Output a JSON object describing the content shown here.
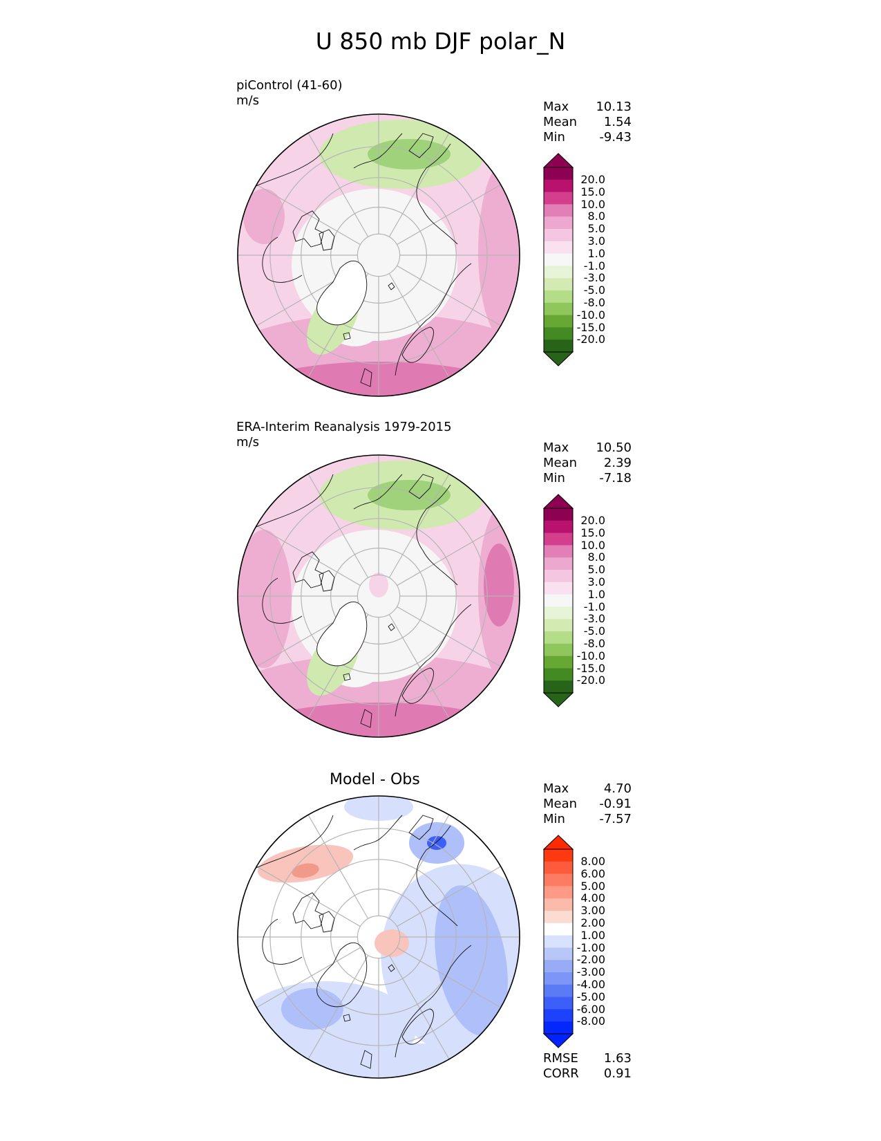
{
  "title": "U 850 mb DJF polar_N",
  "panels": [
    {
      "id": "model",
      "label_lines": [
        "piControl (41-60)",
        "m/s"
      ],
      "center_title": "",
      "stats": [
        {
          "name": "Max",
          "value": "10.13"
        },
        {
          "name": "Mean",
          "value": "1.54"
        },
        {
          "name": "Min",
          "value": "-9.43"
        }
      ],
      "colorbar": "diverging_pink_green",
      "footer_stats": []
    },
    {
      "id": "obs",
      "label_lines": [
        "ERA-Interim Reanalysis 1979-2015",
        "m/s"
      ],
      "center_title": "",
      "stats": [
        {
          "name": "Max",
          "value": "10.50"
        },
        {
          "name": "Mean",
          "value": "2.39"
        },
        {
          "name": "Min",
          "value": "-7.18"
        }
      ],
      "colorbar": "diverging_pink_green",
      "footer_stats": []
    },
    {
      "id": "diff",
      "label_lines": [],
      "center_title": "Model - Obs",
      "stats": [
        {
          "name": "Max",
          "value": "4.70"
        },
        {
          "name": "Mean",
          "value": "-0.91"
        },
        {
          "name": "Min",
          "value": "-7.57"
        }
      ],
      "colorbar": "diverging_red_blue",
      "footer_stats": [
        {
          "name": "RMSE",
          "value": "1.63"
        },
        {
          "name": "CORR",
          "value": "0.91"
        }
      ]
    }
  ],
  "colorbars": {
    "diverging_pink_green": {
      "labels": [
        "20.0",
        "15.0",
        "10.0",
        "8.0",
        "5.0",
        "3.0",
        "1.0",
        "-1.0",
        "-3.0",
        "-5.0",
        "-8.0",
        "-10.0",
        "-15.0",
        "-20.0"
      ],
      "colors": [
        "#8e0152",
        "#b8126e",
        "#d33f8d",
        "#e27fb6",
        "#eda8d0",
        "#f4c6e2",
        "#fae1ef",
        "#f7f7f7",
        "#e8f4d8",
        "#d3ebb3",
        "#b4dd88",
        "#8fc75d",
        "#67a733",
        "#448a22",
        "#276419"
      ],
      "over_color": "#8e0152",
      "under_color": "#276419"
    },
    "diverging_red_blue": {
      "labels": [
        "8.00",
        "6.00",
        "5.00",
        "4.00",
        "3.00",
        "2.00",
        "1.00",
        "-1.00",
        "-2.00",
        "-3.00",
        "-4.00",
        "-5.00",
        "-6.00",
        "-8.00"
      ],
      "colors": [
        "#ff3a10",
        "#fd5b3b",
        "#fd7b62",
        "#fc9a85",
        "#fbbaaa",
        "#fcdbd1",
        "#ffffff",
        "#d9e2fc",
        "#b8c7f8",
        "#97abf6",
        "#7d95f6",
        "#5b7af6",
        "#3c5ef9",
        "#1d41fc",
        "#0427fd"
      ],
      "over_color": "#ff2b00",
      "under_color": "#0022ff"
    }
  },
  "colors": {
    "green_fill": "#cfe9ae",
    "green_dark": "#9fd27a",
    "pink_light": "#f7d3e7",
    "pink_mid": "#eeaed2",
    "pink_dark": "#e07ab3",
    "near_white": "#f6f6f6",
    "red_light": "#f8c4bc",
    "red_mid": "#f29a8a",
    "blue_light": "#d6dffc",
    "blue_mid": "#aebffa",
    "blue_dark": "#6f89f6",
    "grid": "#b5b5b5"
  }
}
